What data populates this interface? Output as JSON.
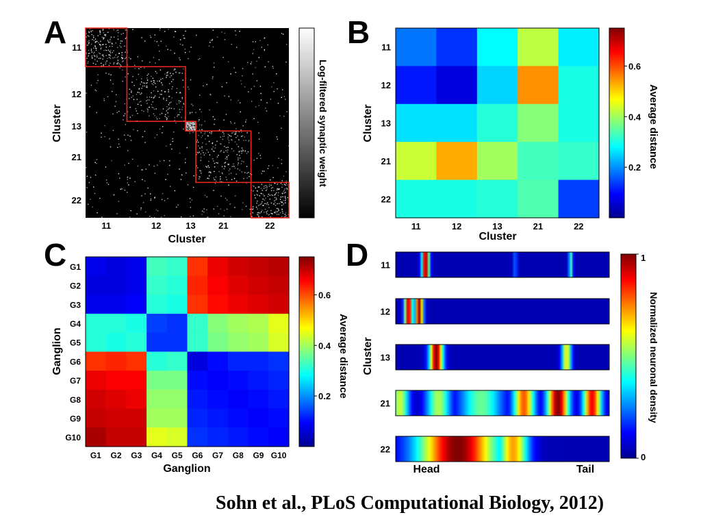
{
  "chart_data": [
    {
      "panel": "A",
      "type": "heatmap",
      "xlabel": "Cluster",
      "ylabel": "Cluster",
      "tick_labels": [
        "11",
        "12",
        "13",
        "21",
        "22"
      ],
      "cluster_sizes": [
        60,
        85,
        15,
        80,
        55
      ],
      "colorbar_label": "Log-filtered synaptic weight",
      "colormap": "gray",
      "box_color": "#e8281e"
    },
    {
      "panel": "B",
      "type": "heatmap",
      "xlabel": "Cluster",
      "ylabel": "Cluster",
      "categories": [
        "11",
        "12",
        "13",
        "21",
        "22"
      ],
      "values": [
        [
          0.18,
          0.13,
          0.28,
          0.42,
          0.27
        ],
        [
          0.11,
          0.07,
          0.25,
          0.55,
          0.3
        ],
        [
          0.26,
          0.26,
          0.31,
          0.38,
          0.3
        ],
        [
          0.43,
          0.53,
          0.4,
          0.33,
          0.32
        ],
        [
          0.3,
          0.3,
          0.31,
          0.34,
          0.14
        ]
      ],
      "zlim": [
        0,
        0.75
      ],
      "colorbar_ticks": [
        0.2,
        0.4,
        0.6
      ],
      "colorbar_label": "Average distance",
      "colormap": "jet"
    },
    {
      "panel": "C",
      "type": "heatmap",
      "xlabel": "Ganglion",
      "ylabel": "Ganglion",
      "categories": [
        "G1",
        "G2",
        "G3",
        "G4",
        "G5",
        "G6",
        "G7",
        "G8",
        "G9",
        "G10"
      ],
      "values": [
        [
          0.08,
          0.07,
          0.08,
          0.33,
          0.32,
          0.62,
          0.67,
          0.69,
          0.7,
          0.71
        ],
        [
          0.07,
          0.07,
          0.08,
          0.32,
          0.31,
          0.63,
          0.66,
          0.68,
          0.69,
          0.7
        ],
        [
          0.08,
          0.08,
          0.09,
          0.31,
          0.3,
          0.62,
          0.65,
          0.67,
          0.68,
          0.69
        ],
        [
          0.31,
          0.31,
          0.3,
          0.14,
          0.13,
          0.32,
          0.38,
          0.4,
          0.41,
          0.45
        ],
        [
          0.31,
          0.3,
          0.31,
          0.13,
          0.13,
          0.32,
          0.37,
          0.39,
          0.4,
          0.44
        ],
        [
          0.62,
          0.63,
          0.62,
          0.31,
          0.32,
          0.07,
          0.1,
          0.12,
          0.12,
          0.13
        ],
        [
          0.67,
          0.66,
          0.66,
          0.37,
          0.37,
          0.1,
          0.09,
          0.1,
          0.11,
          0.12
        ],
        [
          0.69,
          0.68,
          0.67,
          0.39,
          0.39,
          0.11,
          0.1,
          0.09,
          0.1,
          0.11
        ],
        [
          0.7,
          0.69,
          0.69,
          0.4,
          0.4,
          0.12,
          0.11,
          0.1,
          0.09,
          0.1
        ],
        [
          0.72,
          0.7,
          0.7,
          0.45,
          0.44,
          0.13,
          0.12,
          0.11,
          0.1,
          0.09
        ]
      ],
      "zlim": [
        0,
        0.75
      ],
      "colorbar_ticks": [
        0.2,
        0.4,
        0.6
      ],
      "colorbar_label": "Average distance",
      "colormap": "jet"
    },
    {
      "panel": "D",
      "type": "heatmap",
      "ylabel": "Cluster",
      "x_start_label": "Head",
      "x_end_label": "Tail",
      "colorbar_ticks": [
        "0",
        "1"
      ],
      "colorbar_label": "Normalized neuronal density",
      "colormap": "jet",
      "series": [
        {
          "name": "11",
          "peaks": [
            {
              "pos": 0.14,
              "width": 0.012,
              "amp": 1.0
            },
            {
              "pos": 0.56,
              "width": 0.006,
              "amp": 0.22
            },
            {
              "pos": 0.82,
              "width": 0.007,
              "amp": 0.42
            }
          ]
        },
        {
          "name": "12",
          "peaks": [
            {
              "pos": 0.06,
              "width": 0.013,
              "amp": 0.95
            },
            {
              "pos": 0.11,
              "width": 0.013,
              "amp": 1.0
            }
          ]
        },
        {
          "name": "13",
          "peaks": [
            {
              "pos": 0.19,
              "width": 0.022,
              "amp": 1.0
            },
            {
              "pos": 0.8,
              "width": 0.016,
              "amp": 0.62
            }
          ]
        },
        {
          "name": "21",
          "peaks": [
            {
              "pos": 0.02,
              "width": 0.03,
              "amp": 0.55
            },
            {
              "pos": 0.2,
              "width": 0.04,
              "amp": 0.52
            },
            {
              "pos": 0.4,
              "width": 0.07,
              "amp": 0.45
            },
            {
              "pos": 0.6,
              "width": 0.035,
              "amp": 0.78
            },
            {
              "pos": 0.76,
              "width": 0.035,
              "amp": 1.0
            },
            {
              "pos": 0.92,
              "width": 0.03,
              "amp": 0.88
            }
          ]
        },
        {
          "name": "22",
          "peaks": [
            {
              "pos": 0.29,
              "width": 0.13,
              "amp": 1.0
            },
            {
              "pos": 0.55,
              "width": 0.05,
              "amp": 0.7
            }
          ]
        }
      ]
    }
  ],
  "panel_labels": {
    "a": "A",
    "b": "B",
    "c": "C",
    "d": "D"
  },
  "axis_labels": {
    "a_x": "Cluster",
    "a_y": "Cluster",
    "a_cb": "Log-filtered synaptic weight",
    "b_x": "Cluster",
    "b_y": "Cluster",
    "b_cb": "Average distance",
    "c_x": "Ganglion",
    "c_y": "Ganglion",
    "c_cb": "Average distance",
    "d_y": "Cluster",
    "d_head": "Head",
    "d_tail": "Tail",
    "d_cb": "Normalized neuronal density"
  },
  "citation": "Sohn et al., PLoS Computational Biology, 2012)"
}
